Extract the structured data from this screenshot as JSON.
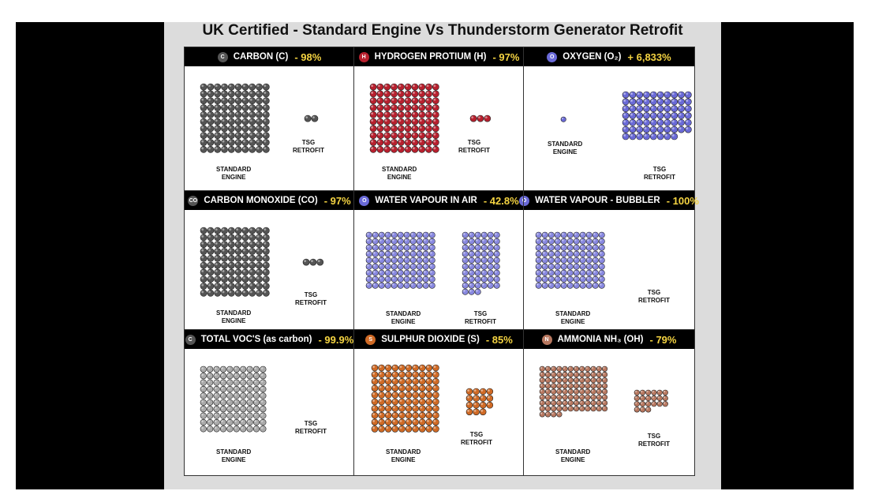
{
  "title": "UK Certified - Standard Engine Vs Thunderstorm Generator Retrofit",
  "chart_data": {
    "type": "pictogram",
    "colors": {
      "carbon": "#555555",
      "hydrogen": "#b8202e",
      "oxygen": "#6a6ad8",
      "water": "#8888e0",
      "voc": "#aaaaaa",
      "sulphur": "#d06a25",
      "ammonia": "#b87860",
      "header_bg": "#000000",
      "header_pct": "#f5d442"
    },
    "panels": [
      {
        "name": "CARBON (C)",
        "change": "- 98%",
        "icon": "carbon-icon",
        "icon_text": "C",
        "standard_label": [
          "STANDARD",
          "ENGINE"
        ],
        "retrofit_label": [
          "TSG",
          "RETROFIT"
        ],
        "standard_count": 100,
        "retrofit_count": 2
      },
      {
        "name": "HYDROGEN PROTIUM (H)",
        "change": "- 97%",
        "icon": "hydrogen-icon",
        "icon_text": "H",
        "standard_label": [
          "STANDARD",
          "ENGINE"
        ],
        "retrofit_label": [
          "TSG",
          "RETROFIT"
        ],
        "standard_count": 100,
        "retrofit_count": 3
      },
      {
        "name": "OXYGEN (O₂)",
        "change": "+ 6,833%",
        "icon": "oxygen-icon",
        "icon_text": "O",
        "standard_label": [
          "STANDARD",
          "ENGINE"
        ],
        "retrofit_label": [
          "TSG",
          "RETROFIT"
        ],
        "standard_count": 1,
        "retrofit_count": 68
      },
      {
        "name": "CARBON MONOXIDE (CO)",
        "change": "- 97%",
        "icon": "carbon-monoxide-icon",
        "icon_text": "CO",
        "standard_label": [
          "STANDARD",
          "ENGINE"
        ],
        "retrofit_label": [
          "TSG",
          "RETROFIT"
        ],
        "standard_count": 100,
        "retrofit_count": 3
      },
      {
        "name": "WATER VAPOUR IN AIR",
        "change": "- 42.8%",
        "icon": "water-molecule-icon",
        "icon_text": "O",
        "standard_label": [
          "STANDARD",
          "ENGINE"
        ],
        "retrofit_label": [
          "TSG",
          "RETROFIT"
        ],
        "standard_count": 100,
        "retrofit_count": 57
      },
      {
        "name": "WATER VAPOUR - BUBBLER",
        "change": "- 100%",
        "icon": "water-molecule-icon",
        "icon_text": "O",
        "standard_label": [
          "STANDARD",
          "ENGINE"
        ],
        "retrofit_label": [
          "TSG",
          "RETROFIT"
        ],
        "standard_count": 100,
        "retrofit_count": 0
      },
      {
        "name": "TOTAL VOC'S (as carbon)",
        "change": "- 99.9%",
        "icon": "voc-icon",
        "icon_text": "C",
        "standard_label": [
          "STANDARD",
          "ENGINE"
        ],
        "retrofit_label": [
          "TSG",
          "RETROFIT"
        ],
        "standard_count": 100,
        "retrofit_count": 0
      },
      {
        "name": "SULPHUR DIOXIDE (S)",
        "change": "- 85%",
        "icon": "sulphur-dioxide-icon",
        "icon_text": "S",
        "standard_label": [
          "STANDARD",
          "ENGINE"
        ],
        "retrofit_label": [
          "TSG",
          "RETROFIT"
        ],
        "standard_count": 100,
        "retrofit_count": 15
      },
      {
        "name": "AMMONIA NH₃ (OH)",
        "change": "- 79%",
        "icon": "ammonia-icon",
        "icon_text": "N",
        "standard_label": [
          "STANDARD",
          "ENGINE"
        ],
        "retrofit_label": [
          "TSG",
          "RETROFIT"
        ],
        "standard_count": 100,
        "retrofit_count": 21
      }
    ]
  }
}
